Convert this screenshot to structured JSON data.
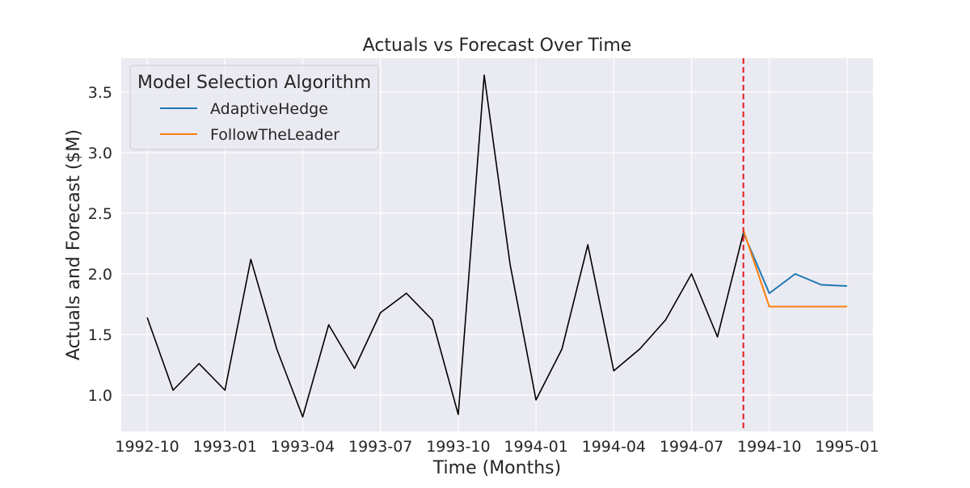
{
  "chart_data": {
    "type": "line",
    "title": "Actuals vs Forecast Over Time",
    "xlabel": "Time (Months)",
    "ylabel": "Actuals and Forecast ($M)",
    "x_ticks": [
      "1992-10",
      "1993-01",
      "1993-04",
      "1993-07",
      "1993-10",
      "1994-01",
      "1994-04",
      "1994-07",
      "1994-10",
      "1995-01"
    ],
    "y_ticks": [
      "1.0",
      "1.5",
      "2.0",
      "2.5",
      "3.0",
      "3.5"
    ],
    "ylim": [
      0.7,
      3.78
    ],
    "xlim": [
      "1992-09",
      "1995-02"
    ],
    "grid": true,
    "legend": {
      "title": "Model Selection Algorithm",
      "location": "top-left"
    },
    "actuals": {
      "color": "#000000",
      "x": [
        "1992-10",
        "1992-11",
        "1992-12",
        "1993-01",
        "1993-02",
        "1993-03",
        "1993-04",
        "1993-05",
        "1993-06",
        "1993-07",
        "1993-08",
        "1993-09",
        "1993-10",
        "1993-11",
        "1993-12",
        "1994-01",
        "1994-02",
        "1994-03",
        "1994-04",
        "1994-05",
        "1994-06",
        "1994-07",
        "1994-08",
        "1994-09"
      ],
      "values": [
        1.64,
        1.04,
        1.26,
        1.04,
        2.12,
        1.38,
        0.82,
        1.58,
        1.22,
        1.68,
        1.84,
        1.62,
        0.84,
        3.64,
        2.08,
        0.96,
        1.38,
        2.24,
        1.2,
        1.38,
        1.62,
        2.0,
        1.48,
        2.34
      ]
    },
    "series": [
      {
        "name": "AdaptiveHedge",
        "color": "#1f77b4",
        "x": [
          "1994-09",
          "1994-10",
          "1994-11",
          "1994-12",
          "1995-01"
        ],
        "values": [
          2.34,
          1.84,
          2.0,
          1.91,
          1.9
        ]
      },
      {
        "name": "FollowTheLeader",
        "color": "#ff7f0e",
        "x": [
          "1994-09",
          "1994-10",
          "1994-11",
          "1994-12",
          "1995-01"
        ],
        "values": [
          2.36,
          1.73,
          1.73,
          1.73,
          1.73
        ]
      }
    ],
    "vline": {
      "x": "1994-09",
      "color": "#e31a1c",
      "style": "dashed"
    }
  }
}
